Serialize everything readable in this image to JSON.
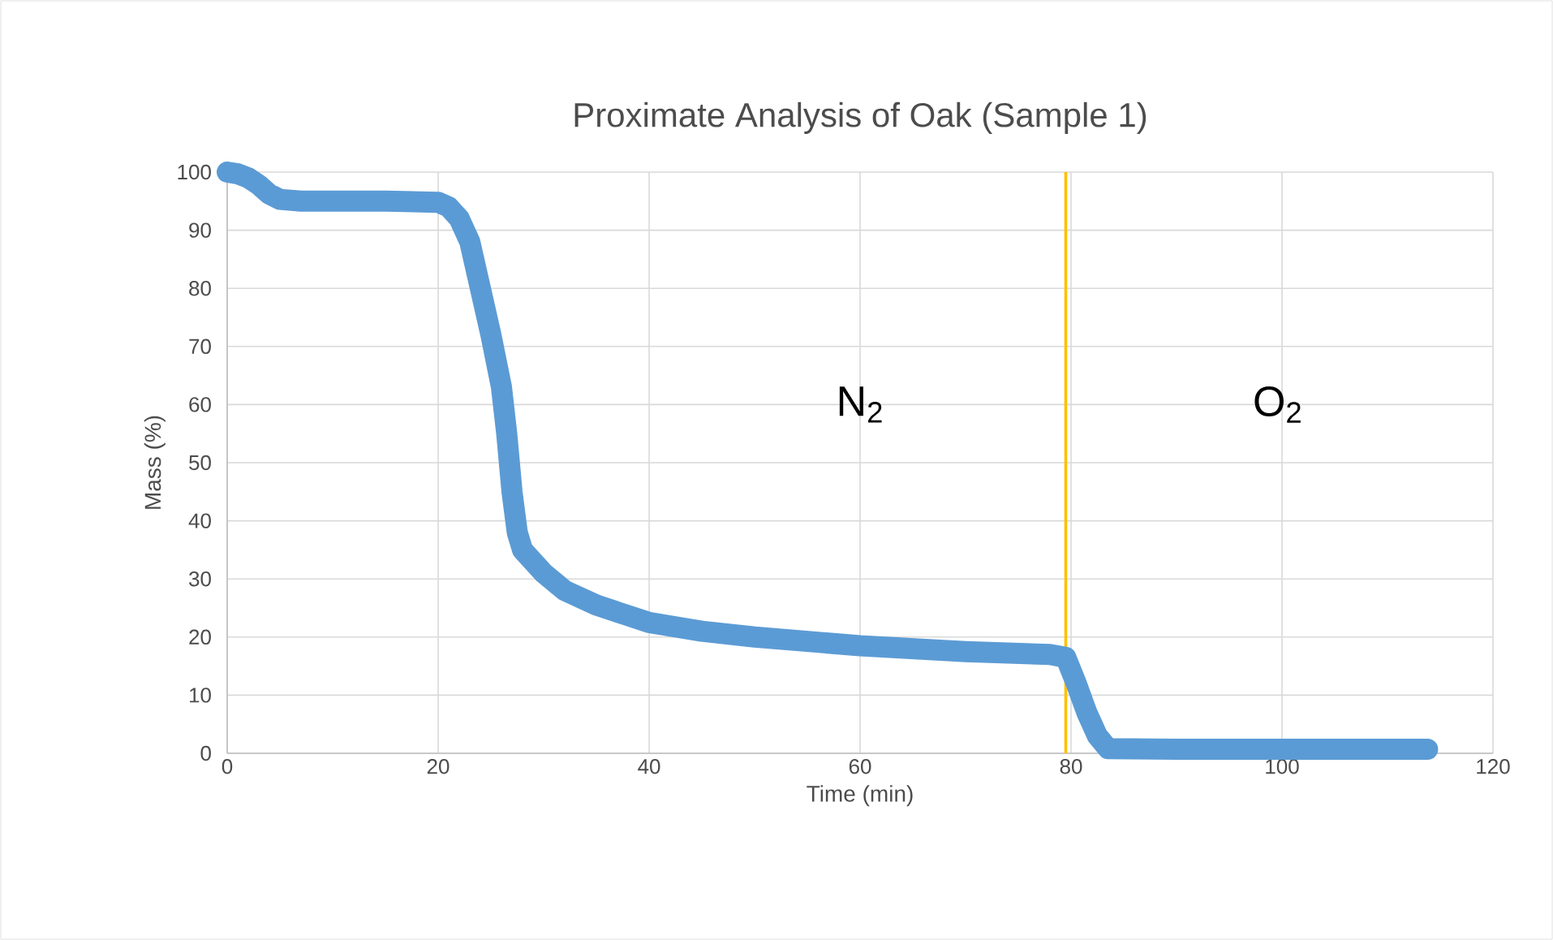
{
  "chart_data": {
    "type": "line",
    "title": "Proximate Analysis of Oak (Sample 1)",
    "xlabel": "Time (min)",
    "ylabel": "Mass (%)",
    "series": [
      {
        "color": "#5b9bd5",
        "x": [
          0,
          1,
          2,
          3,
          4,
          5,
          7,
          10,
          15,
          20,
          21,
          22,
          23,
          24,
          25,
          26,
          26.5,
          27,
          27.5,
          28,
          30,
          32,
          35,
          40,
          45,
          50,
          60,
          70,
          78,
          79.5,
          80.5,
          81.5,
          82.5,
          83.5,
          90,
          100,
          113.8
        ],
        "values": [
          100,
          99.7,
          99,
          97.8,
          96.2,
          95.3,
          95,
          95,
          95,
          94.8,
          94,
          92,
          88,
          80,
          72,
          63,
          55,
          45,
          38,
          35,
          31,
          28,
          25.5,
          22.5,
          21,
          20,
          18.5,
          17.5,
          17,
          16.5,
          12,
          7,
          3,
          0.8,
          0.7,
          0.7,
          0.7
        ]
      }
    ],
    "xlim": [
      0,
      120
    ],
    "xticks": [
      0,
      20,
      40,
      60,
      80,
      100,
      120
    ],
    "ylim": [
      0,
      100
    ],
    "yticks": [
      0,
      10,
      20,
      30,
      40,
      50,
      60,
      70,
      80,
      90,
      100
    ],
    "grid": true,
    "marker": "none",
    "line_style": "solid",
    "ref_lines": [
      {
        "axis": "x",
        "value": 79.5,
        "color": "#ffc000"
      }
    ],
    "annotations": [
      "N$_{2}$",
      "O$_{2}$"
    ]
  }
}
